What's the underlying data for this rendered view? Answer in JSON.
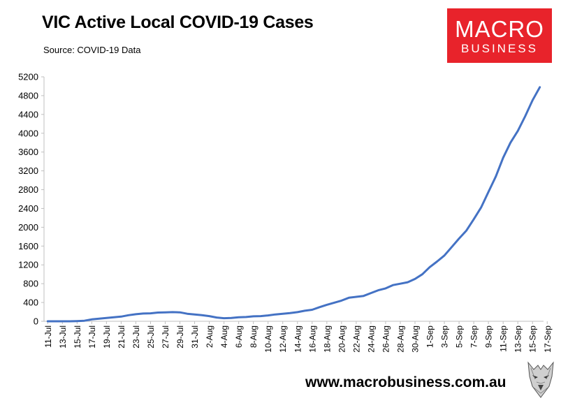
{
  "header": {
    "title": "VIC Active Local COVID-19 Cases",
    "source": "Source: COVID-19 Data"
  },
  "logo": {
    "line1": "MACRO",
    "line2": "BUSINESS"
  },
  "footer": {
    "url": "www.macrobusiness.com.au"
  },
  "colors": {
    "line": "#4472c4",
    "logo_bg": "#e8232b",
    "grid": "#d9d9d9"
  },
  "chart_data": {
    "type": "line",
    "title": "VIC Active Local COVID-19 Cases",
    "xlabel": "",
    "ylabel": "",
    "ylim": [
      0,
      5200
    ],
    "yticks": [
      0,
      400,
      800,
      1200,
      1600,
      2000,
      2400,
      2800,
      3200,
      3600,
      4000,
      4400,
      4800,
      5200
    ],
    "xtick_labels": [
      "11-Jul",
      "13-Jul",
      "15-Jul",
      "17-Jul",
      "19-Jul",
      "21-Jul",
      "23-Jul",
      "25-Jul",
      "27-Jul",
      "29-Jul",
      "31-Jul",
      "2-Aug",
      "4-Aug",
      "6-Aug",
      "8-Aug",
      "10-Aug",
      "12-Aug",
      "14-Aug",
      "16-Aug",
      "18-Aug",
      "20-Aug",
      "22-Aug",
      "24-Aug",
      "26-Aug",
      "28-Aug",
      "30-Aug",
      "1-Sep",
      "3-Sep",
      "5-Sep",
      "7-Sep",
      "9-Sep",
      "11-Sep",
      "13-Sep",
      "15-Sep",
      "17-Sep"
    ],
    "grid": false,
    "series": [
      {
        "values": [
          0,
          0,
          0,
          0,
          5,
          12,
          40,
          55,
          70,
          85,
          100,
          130,
          150,
          165,
          170,
          185,
          190,
          195,
          190,
          160,
          145,
          130,
          110,
          80,
          65,
          70,
          85,
          90,
          105,
          110,
          125,
          145,
          160,
          175,
          195,
          225,
          245,
          300,
          350,
          395,
          440,
          500,
          520,
          540,
          600,
          660,
          700,
          770,
          800,
          830,
          900,
          1000,
          1150,
          1270,
          1400,
          1580,
          1760,
          1930,
          2170,
          2420,
          2750,
          3080,
          3480,
          3800,
          4050,
          4360,
          4700,
          4980
        ]
      }
    ]
  }
}
